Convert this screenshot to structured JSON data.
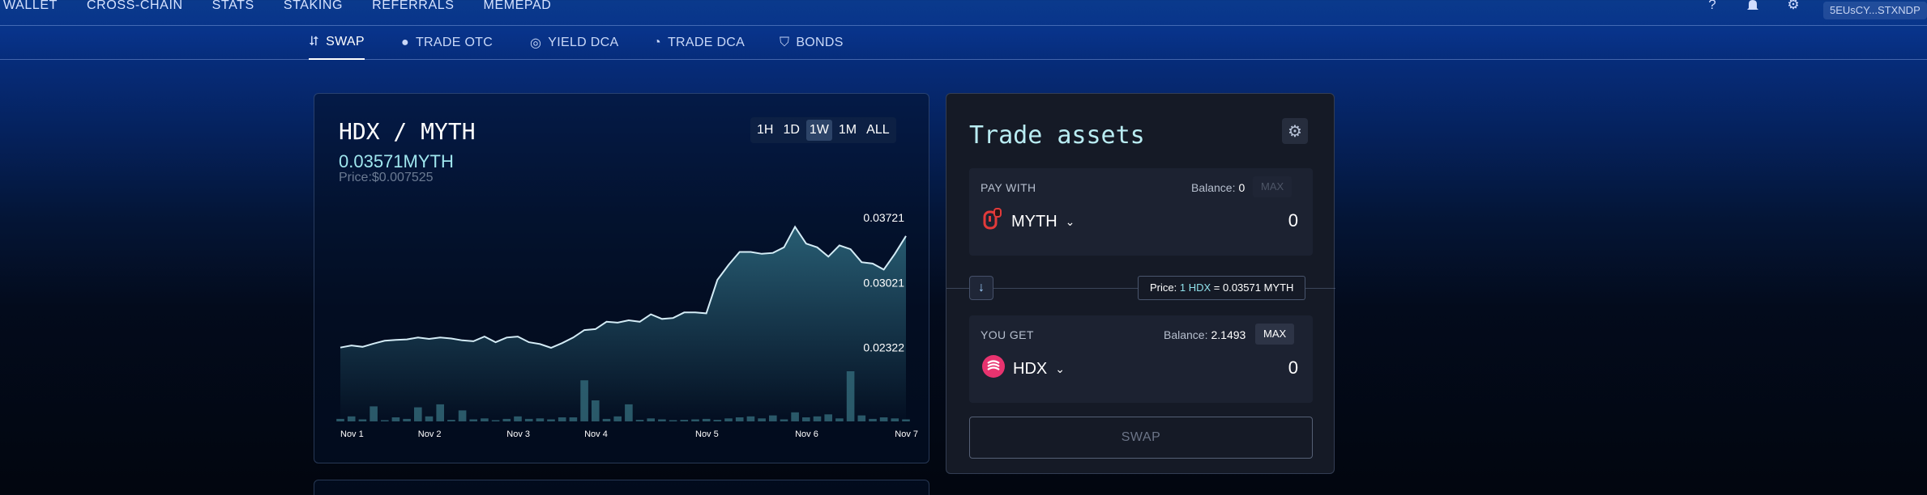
{
  "topnav": {
    "items": [
      "WALLET",
      "CROSS-CHAIN",
      "STATS",
      "STAKING",
      "REFERRALS",
      "MEMEPAD"
    ],
    "icons": [
      "help-icon",
      "bell-icon",
      "gear-icon"
    ],
    "account": "5EUsCY...STXNDP"
  },
  "subnav": {
    "tabs": [
      {
        "label": "SWAP",
        "icon": "swap-icon",
        "active": true
      },
      {
        "label": "TRADE OTC",
        "icon": "otc-icon",
        "active": false
      },
      {
        "label": "YIELD DCA",
        "icon": "yield-dca-icon",
        "active": false
      },
      {
        "label": "TRADE DCA",
        "icon": "trade-dca-icon",
        "active": false
      },
      {
        "label": "BONDS",
        "icon": "bonds-icon",
        "active": false
      }
    ]
  },
  "chart": {
    "pair": "HDX / MYTH",
    "price": "0.03571MYTH",
    "usd_price": "Price:$0.007525",
    "ranges": [
      "1H",
      "1D",
      "1W",
      "1M",
      "ALL"
    ],
    "selected_range": "1W"
  },
  "chart_data": {
    "type": "area",
    "ylim": [
      0.0205,
      0.0405
    ],
    "ytick_labels": [
      "0.03721",
      "0.03021",
      "0.02322"
    ],
    "y": [
      0.02322,
      0.02345,
      0.0233,
      0.02365,
      0.02395,
      0.02405,
      0.0241,
      0.0243,
      0.02415,
      0.0243,
      0.0242,
      0.024,
      0.0239,
      0.0244,
      0.0238,
      0.0243,
      0.0244,
      0.0238,
      0.0236,
      0.0232,
      0.0237,
      0.0243,
      0.0251,
      0.0252,
      0.026,
      0.0259,
      0.02615,
      0.026,
      0.0268,
      0.0263,
      0.0264,
      0.027,
      0.027,
      0.0269,
      0.0305,
      0.0321,
      0.0335,
      0.0335,
      0.0333,
      0.0334,
      0.034,
      0.0362,
      0.0344,
      0.034,
      0.033,
      0.0342,
      0.0338,
      0.0324,
      0.03225,
      0.0316,
      0.0333,
      0.03521
    ],
    "volume": [
      0.05,
      0.1,
      0.04,
      0.3,
      0.02,
      0.08,
      0.05,
      0.28,
      0.1,
      0.34,
      0.03,
      0.22,
      0.04,
      0.06,
      0.02,
      0.05,
      0.1,
      0.05,
      0.06,
      0.04,
      0.08,
      0.08,
      0.82,
      0.42,
      0.05,
      0.1,
      0.34,
      0.03,
      0.06,
      0.04,
      0.02,
      0.03,
      0.04,
      0.05,
      0.03,
      0.06,
      0.08,
      0.1,
      0.06,
      0.12,
      0.04,
      0.18,
      0.08,
      0.1,
      0.14,
      0.06,
      1.0,
      0.12,
      0.05,
      0.08,
      0.06,
      0.04
    ],
    "x_tick_labels": [
      {
        "label": "Nov 1",
        "index": 0
      },
      {
        "label": "Nov 2",
        "index": 7
      },
      {
        "label": "Nov 3",
        "index": 15
      },
      {
        "label": "Nov 4",
        "index": 22
      },
      {
        "label": "Nov 5",
        "index": 32
      },
      {
        "label": "Nov 6",
        "index": 41
      },
      {
        "label": "Nov 7",
        "index": 50
      }
    ],
    "line_color": "#d4ecf6",
    "area_color": "#2e6a7e",
    "volume_color": "#2a5868"
  },
  "trade": {
    "title": "Trade assets",
    "pay": {
      "label": "PAY WITH",
      "balance_label": "Balance:",
      "balance": "0",
      "max": "MAX",
      "asset": "MYTH",
      "amount": "0"
    },
    "get": {
      "label": "YOU GET",
      "balance_label": "Balance:",
      "balance": "2.1493",
      "max": "MAX",
      "asset": "HDX",
      "amount": "0"
    },
    "price_prefix": "Price:",
    "price_base": "1 HDX",
    "price_rest": "= 0.03571 MYTH",
    "swap_button": "SWAP"
  },
  "colors": {
    "accent": "#9fe6ee",
    "hdx": "#e8336f",
    "myth": "#e23a3a"
  }
}
